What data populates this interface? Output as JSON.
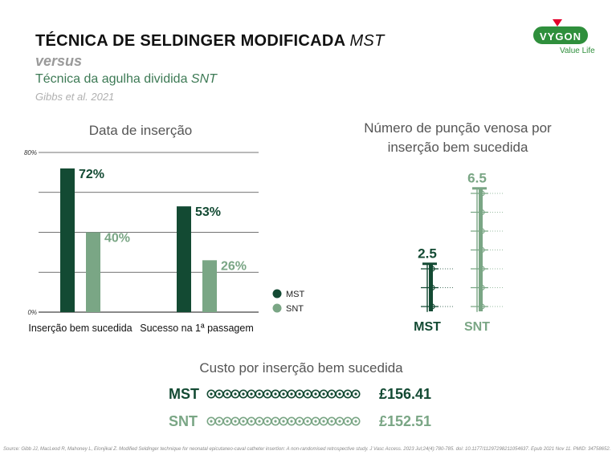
{
  "header": {
    "title_main": "TÉCNICA DE SELDINGER MODIFICADA",
    "title_abbr": "MST",
    "versus": "versus",
    "subtitle_main": "Técnica da agulha dividida",
    "subtitle_abbr": "SNT",
    "citation": "Gibbs et al. 2021"
  },
  "logo": {
    "text": "VYGON",
    "tagline": "Value Life"
  },
  "colors": {
    "mst": "#134a33",
    "snt": "#7aa685",
    "brand": "#2f8f3c"
  },
  "chart_data": [
    {
      "type": "bar",
      "title": "Data de inserção",
      "categories": [
        "Inserção bem sucedida",
        "Sucesso na 1ª passagem"
      ],
      "series": [
        {
          "name": "MST",
          "values": [
            72,
            53
          ],
          "labels": [
            "72%",
            "53%"
          ]
        },
        {
          "name": "SNT",
          "values": [
            40,
            26
          ],
          "labels": [
            "40%",
            "26%"
          ]
        }
      ],
      "ylim": [
        0,
        80
      ],
      "y_tick_labels": [
        "80%",
        "0%"
      ],
      "grid": true,
      "legend": "bottom-right"
    },
    {
      "type": "bar",
      "title": "Número de punção venosa por inserção bem sucedida",
      "categories": [
        "MST",
        "SNT"
      ],
      "values": [
        2.5,
        6.5
      ],
      "labels": [
        "2.5",
        "6.5"
      ]
    },
    {
      "type": "bar",
      "title": "Custo por inserção bem sucedida",
      "categories": [
        "MST",
        "SNT"
      ],
      "values": [
        156.41,
        152.51
      ],
      "labels": [
        "£156.41",
        "£152.51"
      ],
      "orientation": "horizontal"
    }
  ],
  "footer": {
    "source": "Source: Gibb JJ, MacLeod R, Mahoney L, Elonjikal Z. Modified Seldinger technique for neonatal epicutaneo-caval catheter insertion: A non-randomised retrospective study. J Vasc Access. 2023 Jul;24(4):780-785. doi: 10.1177/11297298211054637. Epub 2021 Nov 11. PMID: 34758652."
  }
}
